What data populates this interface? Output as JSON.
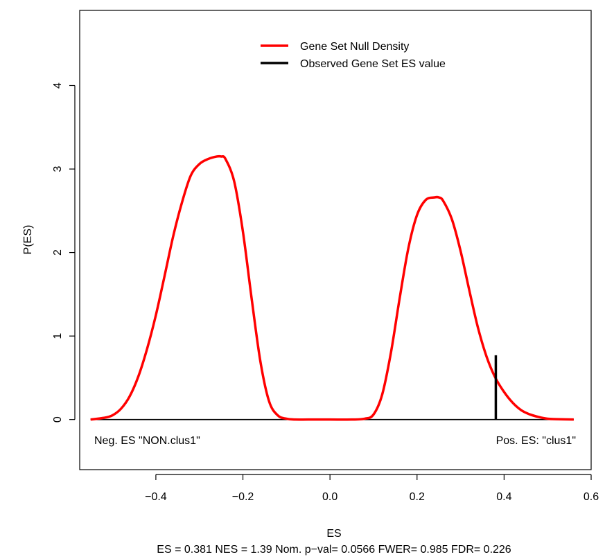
{
  "chart_data": {
    "type": "line",
    "title": "",
    "xlabel": "ES",
    "ylabel": "P(ES)",
    "subtitle": "ES = 0.381  NES = 1.39 Nom. p−val= 0.0566 FWER= 0.985 FDR= 0.226",
    "xlim": [
      -0.575,
      0.6
    ],
    "ylim": [
      -0.6,
      4.9
    ],
    "x_ticks": [
      -0.4,
      -0.2,
      0.0,
      0.2,
      0.4,
      0.6
    ],
    "x_tick_labels": [
      "−0.4",
      "−0.2",
      "0.0",
      "0.2",
      "0.4",
      "0.6"
    ],
    "y_ticks": [
      0,
      1,
      2,
      3,
      4
    ],
    "y_tick_labels": [
      "0",
      "1",
      "2",
      "3",
      "4"
    ],
    "grid": false,
    "legend_position": "top-center",
    "legend": [
      {
        "label": "Gene Set Null Density",
        "color": "#ff0000"
      },
      {
        "label": "Observed Gene Set ES value",
        "color": "#000000"
      }
    ],
    "series": [
      {
        "name": "Gene Set Null Density",
        "color": "#ff0000",
        "x": [
          -0.55,
          -0.52,
          -0.5,
          -0.48,
          -0.46,
          -0.44,
          -0.42,
          -0.4,
          -0.38,
          -0.36,
          -0.34,
          -0.32,
          -0.3,
          -0.28,
          -0.26,
          -0.25,
          -0.24,
          -0.22,
          -0.2,
          -0.18,
          -0.16,
          -0.14,
          -0.12,
          -0.1,
          -0.08,
          -0.05,
          0.0,
          0.05,
          0.08,
          0.1,
          0.12,
          0.14,
          0.16,
          0.18,
          0.2,
          0.22,
          0.24,
          0.25,
          0.26,
          0.28,
          0.3,
          0.32,
          0.34,
          0.36,
          0.38,
          0.4,
          0.42,
          0.44,
          0.46,
          0.48,
          0.5,
          0.52,
          0.56
        ],
        "y": [
          0.0,
          0.02,
          0.05,
          0.13,
          0.28,
          0.52,
          0.85,
          1.25,
          1.72,
          2.2,
          2.6,
          2.92,
          3.06,
          3.12,
          3.15,
          3.15,
          3.12,
          2.85,
          2.25,
          1.45,
          0.7,
          0.22,
          0.05,
          0.01,
          0.0,
          0.0,
          0.0,
          0.0,
          0.01,
          0.06,
          0.3,
          0.8,
          1.45,
          2.05,
          2.45,
          2.63,
          2.66,
          2.66,
          2.62,
          2.4,
          2.02,
          1.55,
          1.1,
          0.75,
          0.5,
          0.33,
          0.2,
          0.11,
          0.06,
          0.03,
          0.01,
          0.005,
          0.0
        ]
      },
      {
        "name": "Observed Gene Set ES value",
        "color": "#000000",
        "x": [
          0.381,
          0.381
        ],
        "y": [
          0,
          0.77
        ]
      }
    ],
    "reference_lines": [
      {
        "y": 0,
        "x_range": [
          -0.55,
          0.56
        ],
        "color": "#000000"
      }
    ],
    "annotations": [
      {
        "text": "Neg. ES \"NON.clus1\"",
        "position": "bottom-left"
      },
      {
        "text": "Pos. ES: \"clus1\"",
        "position": "bottom-right"
      }
    ]
  }
}
